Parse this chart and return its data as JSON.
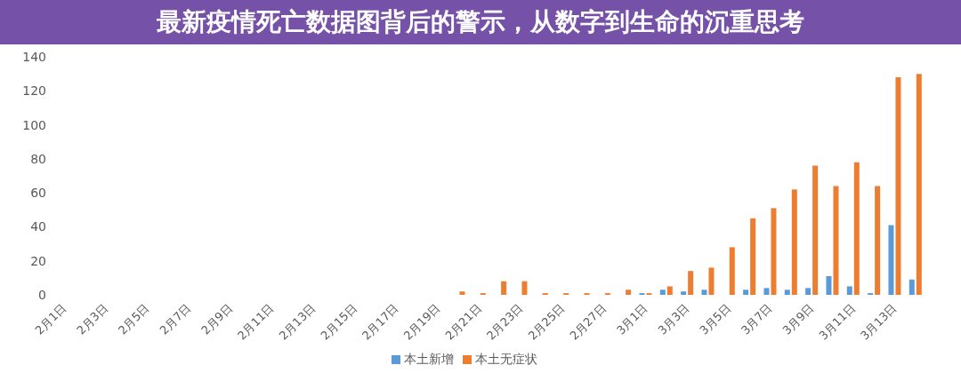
{
  "chart_data": {
    "type": "bar",
    "title": "最新疫情死亡数据图背后的警示，从数字到生命的沉重思考",
    "categories": [
      "2月1日",
      null,
      "2月3日",
      null,
      "2月5日",
      null,
      "2月7日",
      null,
      "2月9日",
      null,
      "2月11日",
      null,
      "2月13日",
      null,
      "2月15日",
      null,
      "2月17日",
      null,
      "2月19日",
      null,
      "2月21日",
      null,
      "2月23日",
      null,
      "2月25日",
      null,
      "2月27日",
      null,
      "3月1日",
      null,
      "3月3日",
      null,
      "3月5日",
      null,
      "3月7日",
      null,
      "3月9日",
      null,
      "3月11日",
      null,
      "3月13日",
      null
    ],
    "series": [
      {
        "name": "本土新增",
        "color": "#5b9bd5",
        "values": [
          0,
          0,
          0,
          0,
          0,
          0,
          0,
          0,
          0,
          0,
          0,
          0,
          0,
          0,
          0,
          0,
          0,
          0,
          0,
          0,
          0,
          0,
          0,
          0,
          0,
          0,
          0,
          0,
          1,
          3,
          2,
          3,
          0,
          3,
          4,
          3,
          4,
          11,
          5,
          1,
          41,
          9
        ]
      },
      {
        "name": "本土无症状",
        "color": "#ed7d31",
        "values": [
          0,
          0,
          0,
          0,
          0,
          0,
          0,
          0,
          0,
          0,
          0,
          0,
          0,
          0,
          0,
          0,
          0,
          0,
          0,
          2,
          1,
          8,
          8,
          1,
          1,
          1,
          1,
          3,
          1,
          5,
          14,
          16,
          28,
          45,
          51,
          62,
          76,
          64,
          78,
          64,
          128,
          130
        ]
      }
    ],
    "ylim": [
      0,
      140
    ],
    "yticks": [
      0,
      20,
      40,
      60,
      80,
      100,
      120,
      140
    ],
    "grid": false,
    "legend": "bottom"
  }
}
